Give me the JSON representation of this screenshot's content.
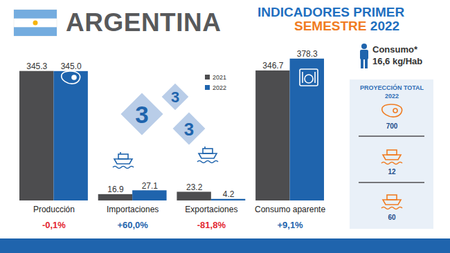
{
  "header": {
    "country": "ARGENTINA",
    "title_parts": [
      {
        "text": "INDICADORES PRIMER",
        "color": "#1f6fc0"
      },
      {
        "text": "SEMESTRE",
        "color": "#f07c22"
      },
      {
        "text": "2022",
        "color": "#1f6fc0"
      }
    ]
  },
  "chart_data": {
    "type": "bar",
    "categories": [
      "Producción",
      "Importaciones",
      "Exportaciones",
      "Consumo aparente"
    ],
    "series": [
      {
        "name": "2021",
        "color": "#4d4d4f",
        "values": [
          345.3,
          16.9,
          23.2,
          346.7
        ]
      },
      {
        "name": "2022",
        "color": "#1f64ad",
        "values": [
          345.0,
          27.1,
          4.2,
          378.3
        ]
      }
    ],
    "ylim": [
      0,
      400
    ],
    "data_labels": true,
    "tick_labels": "x",
    "legend": "top",
    "annotations": [
      {
        "value": -0.1,
        "label": "-0,1%",
        "color": "#e3262f"
      },
      {
        "value": 60.0,
        "label": "+60,0%",
        "color": "#1f64ad"
      },
      {
        "value": -81.8,
        "label": "-81,8%",
        "color": "#e3262f"
      },
      {
        "value": 9.1,
        "label": "+9,1%",
        "color": "#1f64ad"
      }
    ]
  },
  "logo": [
    "3",
    "3",
    "3"
  ],
  "consumo": {
    "label": "Consumo*",
    "value": 16.6,
    "value_label": "16,6 kg/Hab"
  },
  "projection": {
    "title": "PROYECCIÓN TOTAL",
    "year": "2022",
    "values": [
      700,
      12,
      60
    ]
  }
}
